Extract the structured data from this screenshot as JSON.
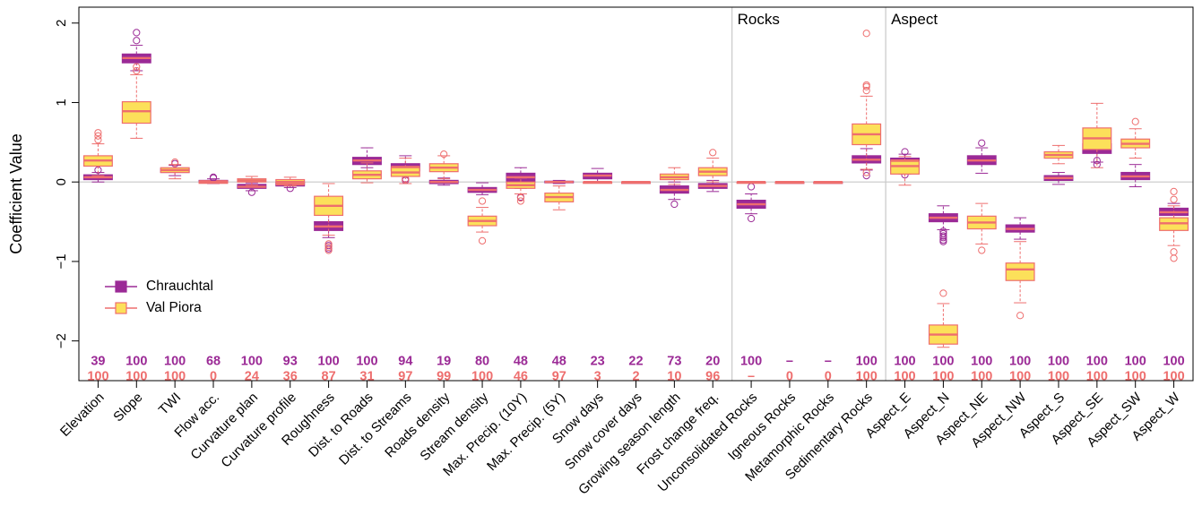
{
  "chart_data": {
    "type": "box",
    "ylabel": "Coefficient Value",
    "ylim": [
      -2.5,
      2.2
    ],
    "yticks": [
      -2,
      -1,
      0,
      1,
      2
    ],
    "ytick_labels": [
      "−2",
      "−1",
      "0",
      "1",
      "2"
    ],
    "zero_line": true,
    "legend_position": "lower-left",
    "section_labels": [
      "Rocks",
      "Aspect"
    ],
    "categories": [
      "Elevation",
      "Slope",
      "TWI",
      "Flow acc.",
      "Curvature plan",
      "Curvature profile",
      "Roughness",
      "Dist. to Roads",
      "Dist. to Streams",
      "Roads density",
      "Stream density",
      "Max. Precip. (10Y)",
      "Max. Precip. (5Y)",
      "Snow days",
      "Snow cover days",
      "Growing season length",
      "Frost change freq.",
      "Unconsolidated Rocks",
      "Igneous Rocks",
      "Metamorphic Rocks",
      "Sedimentary Rocks",
      "Aspect_E",
      "Aspect_N",
      "Aspect_NE",
      "Aspect_NW",
      "Aspect_S",
      "Aspect_SE",
      "Aspect_SW",
      "Aspect_W"
    ],
    "series": [
      {
        "name": "Chrauchtal",
        "colors": {
          "fill": "#9b2a96",
          "median": "#ee6e6e",
          "whisker": "#9b2a96"
        },
        "counts": [
          "39",
          "100",
          "100",
          "68",
          "100",
          "93",
          "100",
          "100",
          "94",
          "19",
          "80",
          "48",
          "48",
          "23",
          "22",
          "73",
          "20",
          "100",
          "–",
          "–",
          "100",
          "100",
          "100",
          "100",
          "100",
          "100",
          "100",
          "100",
          "100"
        ],
        "boxes": [
          {
            "q1": 0.03,
            "median": 0.06,
            "q3": 0.09,
            "wmin": 0.0,
            "wmax": 0.12,
            "outliers": [
              0.15
            ]
          },
          {
            "q1": 1.5,
            "median": 1.56,
            "q3": 1.61,
            "wmin": 1.4,
            "wmax": 1.72,
            "outliers": [
              1.88,
              1.78
            ]
          },
          {
            "q1": 0.12,
            "median": 0.14,
            "q3": 0.17,
            "wmin": 0.08,
            "wmax": 0.21,
            "outliers": [
              0.23
            ]
          },
          {
            "q1": 0.0,
            "median": 0.01,
            "q3": 0.02,
            "wmin": -0.02,
            "wmax": 0.04,
            "outliers": [
              0.05,
              0.06
            ]
          },
          {
            "q1": -0.08,
            "median": -0.06,
            "q3": -0.03,
            "wmin": -0.11,
            "wmax": -0.01,
            "outliers": [
              -0.13
            ]
          },
          {
            "q1": -0.05,
            "median": -0.03,
            "q3": 0.0,
            "wmin": -0.07,
            "wmax": 0.02,
            "outliers": [
              -0.08
            ]
          },
          {
            "q1": -0.61,
            "median": -0.56,
            "q3": -0.5,
            "wmin": -0.7,
            "wmax": -0.42,
            "outliers": [
              -0.8,
              -0.84
            ]
          },
          {
            "q1": 0.22,
            "median": 0.27,
            "q3": 0.31,
            "wmin": 0.18,
            "wmax": 0.43,
            "outliers": []
          },
          {
            "q1": 0.14,
            "median": 0.19,
            "q3": 0.23,
            "wmin": 0.08,
            "wmax": 0.33,
            "outliers": [
              0.02,
              0.04
            ]
          },
          {
            "q1": -0.02,
            "median": 0.0,
            "q3": 0.02,
            "wmin": -0.04,
            "wmax": 0.05,
            "outliers": []
          },
          {
            "q1": -0.13,
            "median": -0.1,
            "q3": -0.07,
            "wmin": -0.16,
            "wmax": -0.01,
            "outliers": []
          },
          {
            "q1": 0.0,
            "median": 0.06,
            "q3": 0.11,
            "wmin": -0.08,
            "wmax": 0.18,
            "outliers": [
              -0.19
            ]
          },
          {
            "q1": -0.01,
            "median": 0.0,
            "q3": 0.01,
            "wmin": -0.02,
            "wmax": 0.02,
            "outliers": []
          },
          {
            "q1": 0.04,
            "median": 0.08,
            "q3": 0.11,
            "wmin": 0.0,
            "wmax": 0.17,
            "outliers": []
          },
          {
            "q1": 0.0,
            "median": 0.0,
            "q3": 0.0,
            "wmin": 0.0,
            "wmax": 0.0,
            "outliers": []
          },
          {
            "q1": -0.14,
            "median": -0.1,
            "q3": -0.05,
            "wmin": -0.22,
            "wmax": 0.0,
            "outliers": [
              -0.28
            ]
          },
          {
            "q1": -0.08,
            "median": -0.05,
            "q3": -0.02,
            "wmin": -0.12,
            "wmax": 0.02,
            "outliers": []
          },
          {
            "q1": -0.33,
            "median": -0.28,
            "q3": -0.23,
            "wmin": -0.4,
            "wmax": -0.15,
            "outliers": [
              -0.46,
              -0.06
            ]
          },
          {
            "q1": 0.0,
            "median": 0.0,
            "q3": 0.0,
            "wmin": 0.0,
            "wmax": 0.0,
            "outliers": []
          },
          {
            "q1": 0.0,
            "median": 0.0,
            "q3": 0.0,
            "wmin": 0.0,
            "wmax": 0.0,
            "outliers": []
          },
          {
            "q1": 0.24,
            "median": 0.28,
            "q3": 0.33,
            "wmin": 0.15,
            "wmax": 0.42,
            "outliers": [
              0.08
            ]
          },
          {
            "q1": 0.15,
            "median": 0.27,
            "q3": 0.3,
            "wmin": 0.1,
            "wmax": 0.35,
            "outliers": [
              0.38,
              0.09
            ]
          },
          {
            "q1": -0.5,
            "median": -0.45,
            "q3": -0.4,
            "wmin": -0.6,
            "wmax": -0.3,
            "outliers": [
              -0.62,
              -0.65,
              -0.68,
              -0.7,
              -0.73,
              -0.75
            ]
          },
          {
            "q1": 0.22,
            "median": 0.27,
            "q3": 0.33,
            "wmin": 0.11,
            "wmax": 0.43,
            "outliers": [
              0.49
            ]
          },
          {
            "q1": -0.63,
            "median": -0.59,
            "q3": -0.54,
            "wmin": -0.72,
            "wmax": -0.45,
            "outliers": []
          },
          {
            "q1": 0.02,
            "median": 0.05,
            "q3": 0.08,
            "wmin": -0.03,
            "wmax": 0.12,
            "outliers": []
          },
          {
            "q1": 0.36,
            "median": 0.42,
            "q3": 0.48,
            "wmin": 0.25,
            "wmax": 0.6,
            "outliers": [
              0.22,
              0.27
            ]
          },
          {
            "q1": 0.03,
            "median": 0.07,
            "q3": 0.12,
            "wmin": -0.06,
            "wmax": 0.22,
            "outliers": []
          },
          {
            "q1": -0.42,
            "median": -0.38,
            "q3": -0.33,
            "wmin": -0.48,
            "wmax": -0.27,
            "outliers": []
          }
        ]
      },
      {
        "name": "Val Piora",
        "colors": {
          "fill": "#fce05a",
          "median": "#ee6e6e",
          "whisker": "#ee6e6e"
        },
        "counts": [
          "100",
          "100",
          "100",
          "0",
          "24",
          "36",
          "87",
          "31",
          "97",
          "99",
          "100",
          "46",
          "97",
          "3",
          "2",
          "10",
          "96",
          "–",
          "0",
          "0",
          "100",
          "100",
          "100",
          "100",
          "100",
          "100",
          "100",
          "100",
          "100"
        ],
        "boxes": [
          {
            "q1": 0.2,
            "median": 0.27,
            "q3": 0.33,
            "wmin": 0.08,
            "wmax": 0.48,
            "outliers": [
              0.53,
              0.58,
              0.62
            ]
          },
          {
            "q1": 0.74,
            "median": 0.89,
            "q3": 1.01,
            "wmin": 0.55,
            "wmax": 1.35,
            "outliers": [
              1.45,
              1.4
            ]
          },
          {
            "q1": 0.12,
            "median": 0.15,
            "q3": 0.18,
            "wmin": 0.04,
            "wmax": 0.22,
            "outliers": [
              0.25
            ]
          },
          {
            "q1": 0.0,
            "median": 0.0,
            "q3": 0.0,
            "wmin": 0.0,
            "wmax": 0.0,
            "outliers": []
          },
          {
            "q1": 0.0,
            "median": 0.02,
            "q3": 0.04,
            "wmin": -0.04,
            "wmax": 0.07,
            "outliers": []
          },
          {
            "q1": -0.02,
            "median": 0.0,
            "q3": 0.03,
            "wmin": -0.05,
            "wmax": 0.06,
            "outliers": []
          },
          {
            "q1": -0.42,
            "median": -0.3,
            "q3": -0.18,
            "wmin": -0.67,
            "wmax": -0.02,
            "outliers": [
              -0.78,
              -0.82,
              -0.86
            ]
          },
          {
            "q1": 0.04,
            "median": 0.09,
            "q3": 0.14,
            "wmin": -0.01,
            "wmax": 0.24,
            "outliers": []
          },
          {
            "q1": 0.07,
            "median": 0.12,
            "q3": 0.18,
            "wmin": -0.02,
            "wmax": 0.3,
            "outliers": [
              0.03
            ]
          },
          {
            "q1": 0.13,
            "median": 0.18,
            "q3": 0.23,
            "wmin": 0.04,
            "wmax": 0.33,
            "outliers": [
              0.35
            ]
          },
          {
            "q1": -0.55,
            "median": -0.49,
            "q3": -0.43,
            "wmin": -0.63,
            "wmax": -0.32,
            "outliers": [
              -0.74,
              -0.24
            ]
          },
          {
            "q1": -0.08,
            "median": -0.04,
            "q3": 0.0,
            "wmin": -0.15,
            "wmax": 0.05,
            "outliers": [
              -0.2,
              -0.24
            ]
          },
          {
            "q1": -0.25,
            "median": -0.19,
            "q3": -0.14,
            "wmin": -0.35,
            "wmax": -0.05,
            "outliers": []
          },
          {
            "q1": 0.0,
            "median": 0.0,
            "q3": 0.0,
            "wmin": 0.0,
            "wmax": 0.0,
            "outliers": []
          },
          {
            "q1": 0.0,
            "median": 0.0,
            "q3": 0.0,
            "wmin": 0.0,
            "wmax": 0.0,
            "outliers": []
          },
          {
            "q1": 0.03,
            "median": 0.06,
            "q3": 0.1,
            "wmin": -0.03,
            "wmax": 0.18,
            "outliers": []
          },
          {
            "q1": 0.08,
            "median": 0.13,
            "q3": 0.18,
            "wmin": 0.0,
            "wmax": 0.3,
            "outliers": [
              0.37
            ]
          },
          {
            "q1": 0.0,
            "median": 0.0,
            "q3": 0.0,
            "wmin": 0.0,
            "wmax": 0.0,
            "outliers": []
          },
          {
            "q1": 0.0,
            "median": 0.0,
            "q3": 0.0,
            "wmin": 0.0,
            "wmax": 0.0,
            "outliers": []
          },
          {
            "q1": 0.0,
            "median": 0.0,
            "q3": 0.0,
            "wmin": 0.0,
            "wmax": 0.0,
            "outliers": []
          },
          {
            "q1": 0.47,
            "median": 0.6,
            "q3": 0.73,
            "wmin": 0.16,
            "wmax": 1.08,
            "outliers": [
              1.15,
              1.2,
              1.22,
              1.87,
              0.12
            ]
          },
          {
            "q1": 0.1,
            "median": 0.2,
            "q3": 0.26,
            "wmin": -0.04,
            "wmax": 0.32,
            "outliers": []
          },
          {
            "q1": -2.04,
            "median": -1.92,
            "q3": -1.8,
            "wmin": -2.08,
            "wmax": -1.53,
            "outliers": [
              -1.4
            ]
          },
          {
            "q1": -0.59,
            "median": -0.51,
            "q3": -0.43,
            "wmin": -0.78,
            "wmax": -0.27,
            "outliers": [
              -0.86
            ]
          },
          {
            "q1": -1.24,
            "median": -1.1,
            "q3": -1.02,
            "wmin": -1.52,
            "wmax": -0.75,
            "outliers": [
              -1.68
            ]
          },
          {
            "q1": 0.3,
            "median": 0.34,
            "q3": 0.38,
            "wmin": 0.23,
            "wmax": 0.46,
            "outliers": []
          },
          {
            "q1": 0.41,
            "median": 0.55,
            "q3": 0.68,
            "wmin": 0.18,
            "wmax": 0.99,
            "outliers": []
          },
          {
            "q1": 0.43,
            "median": 0.48,
            "q3": 0.54,
            "wmin": 0.3,
            "wmax": 0.67,
            "outliers": [
              0.76
            ]
          },
          {
            "q1": -0.61,
            "median": -0.52,
            "q3": -0.45,
            "wmin": -0.8,
            "wmax": -0.3,
            "outliers": [
              -0.88,
              -0.96,
              -0.22,
              -0.12
            ]
          }
        ]
      }
    ]
  }
}
